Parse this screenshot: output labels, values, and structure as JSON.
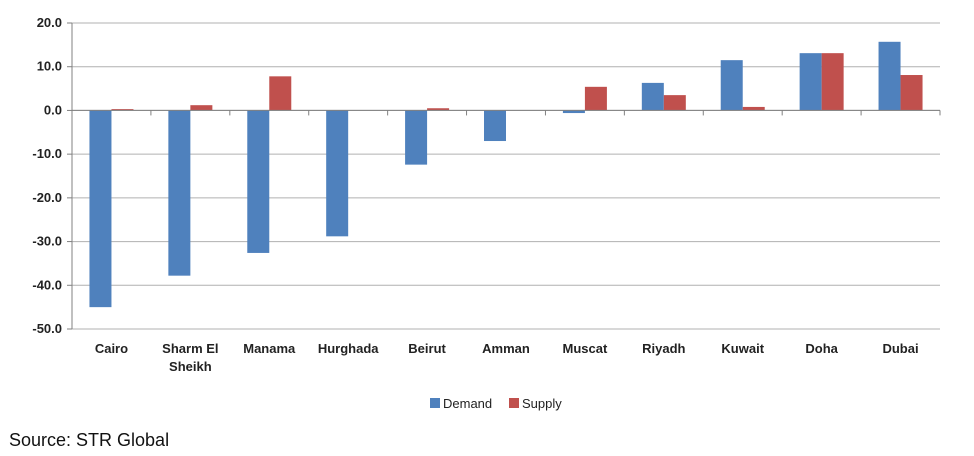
{
  "chart_data": {
    "type": "bar",
    "title": "",
    "xlabel": "",
    "ylabel": "",
    "categories": [
      "Cairo",
      "Sharm El Sheikh",
      "Manama",
      "Hurghada",
      "Beirut",
      "Amman",
      "Muscat",
      "Riyadh",
      "Kuwait",
      "Doha",
      "Dubai"
    ],
    "category_label_lines": [
      [
        "Cairo"
      ],
      [
        "Sharm El",
        "Sheikh"
      ],
      [
        "Manama"
      ],
      [
        "Hurghada"
      ],
      [
        "Beirut"
      ],
      [
        "Amman"
      ],
      [
        "Muscat"
      ],
      [
        "Riyadh"
      ],
      [
        "Kuwait"
      ],
      [
        "Doha"
      ],
      [
        "Dubai"
      ]
    ],
    "series": [
      {
        "name": "Demand",
        "color": "#4f81bd",
        "values": [
          -45.0,
          -37.8,
          -32.6,
          -28.8,
          -12.4,
          -7.0,
          -0.6,
          6.3,
          11.5,
          13.1,
          15.7
        ]
      },
      {
        "name": "Supply",
        "color": "#c0504d",
        "values": [
          0.3,
          1.2,
          7.8,
          0.0,
          0.5,
          0.0,
          5.4,
          3.5,
          0.8,
          13.1,
          8.1
        ]
      }
    ],
    "ylim": [
      -50,
      20
    ],
    "yticks": [
      -50,
      -40,
      -30,
      -20,
      -10,
      0,
      10,
      20
    ],
    "ytick_labels": [
      "-50.0",
      "-40.0",
      "-30.0",
      "-20.0",
      "-10.0",
      "0.0",
      "10.0",
      "20.0"
    ],
    "grid": true,
    "legend_position": "bottom"
  },
  "source": "Source: STR Global"
}
